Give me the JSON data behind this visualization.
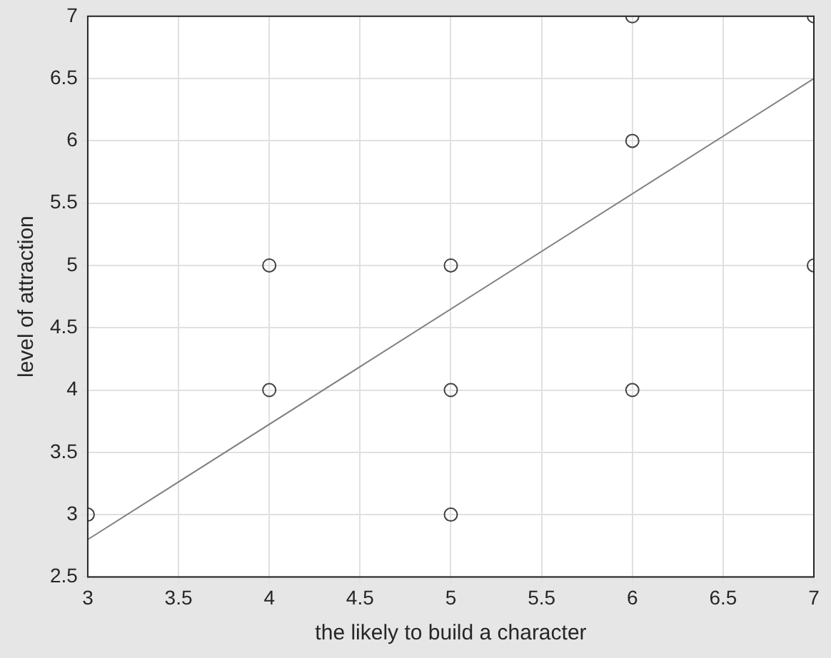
{
  "chart_data": {
    "type": "scatter",
    "xlabel": "the likely to build a character",
    "ylabel": "level of attraction",
    "xlim": [
      3,
      7
    ],
    "ylim": [
      2.5,
      7
    ],
    "xticks": [
      3,
      3.5,
      4,
      4.5,
      5,
      5.5,
      6,
      6.5,
      7
    ],
    "yticks": [
      2.5,
      3,
      3.5,
      4,
      4.5,
      5,
      5.5,
      6,
      6.5,
      7
    ],
    "grid": true,
    "legend": false,
    "series": [
      {
        "color": "#404040",
        "marker": "circle",
        "x": [
          3,
          4,
          4,
          5,
          5,
          5,
          6,
          6,
          6,
          7,
          7
        ],
        "values": [
          3,
          4,
          5,
          3,
          4,
          5,
          4,
          6,
          7,
          5,
          7
        ]
      },
      {
        "type": "line",
        "color": "#808080",
        "marker": "none",
        "line_style": "solid",
        "x": [
          3,
          7
        ],
        "values": [
          2.8,
          6.5
        ]
      }
    ]
  }
}
